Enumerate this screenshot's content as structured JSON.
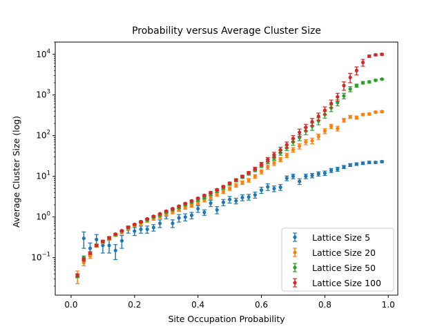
{
  "chart_data": {
    "type": "scatter",
    "title": "Probability versus Average Cluster Size",
    "xlabel": "Site Occupation Probability",
    "ylabel": "Average Cluster Size (log)",
    "xlim": [
      -0.05,
      1.03
    ],
    "ylim": [
      0.012,
      20000
    ],
    "yscale": "log",
    "grid": false,
    "legend_position": "lower-right",
    "xticks": [
      0.0,
      0.2,
      0.4,
      0.6,
      0.8,
      1.0
    ],
    "xtick_labels": [
      "0.0",
      "0.2",
      "0.4",
      "0.6",
      "0.8",
      "1.0"
    ],
    "yticks": [
      0.1,
      1,
      10,
      100,
      1000,
      10000
    ],
    "ytick_labels": [
      {
        "base": "10",
        "exp": "−1"
      },
      {
        "base": "10",
        "exp": "0"
      },
      {
        "base": "10",
        "exp": "1"
      },
      {
        "base": "10",
        "exp": "2"
      },
      {
        "base": "10",
        "exp": "3"
      },
      {
        "base": "10",
        "exp": "4"
      }
    ],
    "series": [
      {
        "name": "Lattice Size 5",
        "color": "#1f77b4",
        "points": [
          [
            0.02,
            0.036,
            0.004
          ],
          [
            0.04,
            0.3,
            0.13
          ],
          [
            0.06,
            0.17,
            0.06
          ],
          [
            0.08,
            0.28,
            0.09
          ],
          [
            0.1,
            0.2,
            0.07
          ],
          [
            0.12,
            0.2,
            0.07
          ],
          [
            0.14,
            0.15,
            0.06
          ],
          [
            0.16,
            0.26,
            0.09
          ],
          [
            0.18,
            0.5,
            0.1
          ],
          [
            0.2,
            0.45,
            0.1
          ],
          [
            0.22,
            0.5,
            0.1
          ],
          [
            0.24,
            0.5,
            0.1
          ],
          [
            0.26,
            0.55,
            0.1
          ],
          [
            0.28,
            0.7,
            0.15
          ],
          [
            0.3,
            1.1,
            0.2
          ],
          [
            0.32,
            0.7,
            0.15
          ],
          [
            0.34,
            0.95,
            0.2
          ],
          [
            0.36,
            1.0,
            0.2
          ],
          [
            0.38,
            1.1,
            0.2
          ],
          [
            0.4,
            1.6,
            0.3
          ],
          [
            0.42,
            1.3,
            0.2
          ],
          [
            0.44,
            2.2,
            0.4
          ],
          [
            0.46,
            1.5,
            0.3
          ],
          [
            0.48,
            2.3,
            0.4
          ],
          [
            0.5,
            2.7,
            0.5
          ],
          [
            0.52,
            2.5,
            0.4
          ],
          [
            0.54,
            3.0,
            0.5
          ],
          [
            0.56,
            3.1,
            0.5
          ],
          [
            0.58,
            3.5,
            0.6
          ],
          [
            0.6,
            4.6,
            0.8
          ],
          [
            0.62,
            5.5,
            1.0
          ],
          [
            0.64,
            5.0,
            0.8
          ],
          [
            0.66,
            5.4,
            0.9
          ],
          [
            0.68,
            9.0,
            1.2
          ],
          [
            0.7,
            10.0,
            1.3
          ],
          [
            0.72,
            7.5,
            1.2
          ],
          [
            0.74,
            10.0,
            1.3
          ],
          [
            0.76,
            10.5,
            1.3
          ],
          [
            0.78,
            11.5,
            1.4
          ],
          [
            0.8,
            12.0,
            1.5
          ],
          [
            0.82,
            14.0,
            1.6
          ],
          [
            0.84,
            15.0,
            1.7
          ],
          [
            0.86,
            17.0,
            1.5
          ],
          [
            0.88,
            19.0,
            1.5
          ],
          [
            0.9,
            20.0,
            1.5
          ],
          [
            0.92,
            21.0,
            1.5
          ],
          [
            0.94,
            22.0,
            1.5
          ],
          [
            0.96,
            22.0,
            1.2
          ],
          [
            0.98,
            23.0,
            1.2
          ]
        ]
      },
      {
        "name": "Lattice Size 20",
        "color": "#ff7f0e",
        "points": [
          [
            0.02,
            0.035,
            0.012
          ],
          [
            0.04,
            0.075,
            0.012
          ],
          [
            0.06,
            0.11,
            0.015
          ],
          [
            0.08,
            0.2,
            0.02
          ],
          [
            0.1,
            0.24,
            0.02
          ],
          [
            0.12,
            0.3,
            0.03
          ],
          [
            0.14,
            0.36,
            0.03
          ],
          [
            0.16,
            0.42,
            0.04
          ],
          [
            0.18,
            0.52,
            0.05
          ],
          [
            0.2,
            0.62,
            0.05
          ],
          [
            0.22,
            0.7,
            0.06
          ],
          [
            0.24,
            0.8,
            0.06
          ],
          [
            0.26,
            0.9,
            0.07
          ],
          [
            0.28,
            1.0,
            0.08
          ],
          [
            0.3,
            1.15,
            0.1
          ],
          [
            0.32,
            1.3,
            0.1
          ],
          [
            0.34,
            1.5,
            0.12
          ],
          [
            0.36,
            1.7,
            0.15
          ],
          [
            0.38,
            1.9,
            0.15
          ],
          [
            0.4,
            2.2,
            0.2
          ],
          [
            0.42,
            2.6,
            0.25
          ],
          [
            0.44,
            3.0,
            0.3
          ],
          [
            0.46,
            3.6,
            0.35
          ],
          [
            0.48,
            4.2,
            0.4
          ],
          [
            0.5,
            5.0,
            0.5
          ],
          [
            0.52,
            6.0,
            0.6
          ],
          [
            0.54,
            7.0,
            0.7
          ],
          [
            0.56,
            8.0,
            0.8
          ],
          [
            0.58,
            10.0,
            1.0
          ],
          [
            0.6,
            13.0,
            1.5
          ],
          [
            0.62,
            17.0,
            2.0
          ],
          [
            0.64,
            21.0,
            2.5
          ],
          [
            0.66,
            26.0,
            3.0
          ],
          [
            0.68,
            33.0,
            4.0
          ],
          [
            0.7,
            45.0,
            6.0
          ],
          [
            0.72,
            55.0,
            8.0
          ],
          [
            0.74,
            70.0,
            10.0
          ],
          [
            0.76,
            75.0,
            12.0
          ],
          [
            0.78,
            95.0,
            14.0
          ],
          [
            0.8,
            130.0,
            18.0
          ],
          [
            0.82,
            170.0,
            20.0
          ],
          [
            0.84,
            150.0,
            20.0
          ],
          [
            0.86,
            240.0,
            25.0
          ],
          [
            0.88,
            290.0,
            25.0
          ],
          [
            0.9,
            280.0,
            25.0
          ],
          [
            0.92,
            330.0,
            20.0
          ],
          [
            0.94,
            340.0,
            20.0
          ],
          [
            0.96,
            380.0,
            20.0
          ],
          [
            0.98,
            390.0,
            20.0
          ]
        ]
      },
      {
        "name": "Lattice Size 50",
        "color": "#2ca02c",
        "points": [
          [
            0.02,
            0.036,
            0.004
          ],
          [
            0.04,
            0.1,
            0.01
          ],
          [
            0.06,
            0.13,
            0.01
          ],
          [
            0.08,
            0.2,
            0.01
          ],
          [
            0.1,
            0.25,
            0.015
          ],
          [
            0.12,
            0.3,
            0.02
          ],
          [
            0.14,
            0.37,
            0.02
          ],
          [
            0.16,
            0.45,
            0.02
          ],
          [
            0.18,
            0.55,
            0.03
          ],
          [
            0.2,
            0.65,
            0.03
          ],
          [
            0.22,
            0.75,
            0.03
          ],
          [
            0.24,
            0.85,
            0.04
          ],
          [
            0.26,
            1.0,
            0.05
          ],
          [
            0.28,
            1.1,
            0.05
          ],
          [
            0.3,
            1.3,
            0.06
          ],
          [
            0.32,
            1.5,
            0.07
          ],
          [
            0.34,
            1.7,
            0.08
          ],
          [
            0.36,
            2.0,
            0.1
          ],
          [
            0.38,
            2.3,
            0.12
          ],
          [
            0.4,
            2.6,
            0.15
          ],
          [
            0.42,
            3.0,
            0.2
          ],
          [
            0.44,
            3.6,
            0.25
          ],
          [
            0.46,
            4.3,
            0.3
          ],
          [
            0.48,
            5.2,
            0.35
          ],
          [
            0.5,
            6.4,
            0.4
          ],
          [
            0.52,
            7.8,
            0.5
          ],
          [
            0.54,
            9.5,
            0.6
          ],
          [
            0.56,
            11.5,
            0.8
          ],
          [
            0.58,
            14.0,
            1.0
          ],
          [
            0.6,
            18.0,
            1.5
          ],
          [
            0.62,
            23.0,
            2.5
          ],
          [
            0.64,
            28.0,
            3.0
          ],
          [
            0.66,
            38.0,
            5.0
          ],
          [
            0.68,
            50.0,
            7.0
          ],
          [
            0.7,
            70.0,
            12.0
          ],
          [
            0.72,
            90.0,
            15.0
          ],
          [
            0.74,
            130.0,
            25.0
          ],
          [
            0.76,
            170.0,
            35.0
          ],
          [
            0.78,
            230.0,
            45.0
          ],
          [
            0.8,
            330.0,
            60.0
          ],
          [
            0.82,
            480.0,
            90.0
          ],
          [
            0.84,
            650.0,
            110.0
          ],
          [
            0.86,
            950.0,
            150.0
          ],
          [
            0.88,
            1400.0,
            200.0
          ],
          [
            0.9,
            1700.0,
            150.0
          ],
          [
            0.92,
            2000.0,
            150.0
          ],
          [
            0.94,
            2100.0,
            120.0
          ],
          [
            0.96,
            2300.0,
            100.0
          ],
          [
            0.98,
            2450.0,
            80.0
          ]
        ]
      },
      {
        "name": "Lattice Size 100",
        "color": "#d62728",
        "points": [
          [
            0.02,
            0.037,
            0.003
          ],
          [
            0.04,
            0.09,
            0.008
          ],
          [
            0.06,
            0.13,
            0.01
          ],
          [
            0.08,
            0.2,
            0.01
          ],
          [
            0.1,
            0.25,
            0.01
          ],
          [
            0.12,
            0.31,
            0.015
          ],
          [
            0.14,
            0.38,
            0.015
          ],
          [
            0.16,
            0.46,
            0.02
          ],
          [
            0.18,
            0.56,
            0.02
          ],
          [
            0.2,
            0.66,
            0.02
          ],
          [
            0.22,
            0.77,
            0.03
          ],
          [
            0.24,
            0.9,
            0.03
          ],
          [
            0.26,
            1.04,
            0.04
          ],
          [
            0.28,
            1.2,
            0.04
          ],
          [
            0.3,
            1.4,
            0.05
          ],
          [
            0.32,
            1.6,
            0.06
          ],
          [
            0.34,
            1.85,
            0.07
          ],
          [
            0.36,
            2.15,
            0.08
          ],
          [
            0.38,
            2.5,
            0.1
          ],
          [
            0.4,
            2.9,
            0.12
          ],
          [
            0.42,
            3.4,
            0.15
          ],
          [
            0.44,
            4.0,
            0.2
          ],
          [
            0.46,
            4.7,
            0.25
          ],
          [
            0.48,
            5.6,
            0.3
          ],
          [
            0.5,
            6.8,
            0.4
          ],
          [
            0.52,
            8.2,
            0.5
          ],
          [
            0.54,
            10.0,
            0.6
          ],
          [
            0.56,
            12.3,
            0.8
          ],
          [
            0.58,
            15.5,
            1.2
          ],
          [
            0.6,
            20.0,
            2.0
          ],
          [
            0.62,
            26.0,
            3.0
          ],
          [
            0.64,
            34.0,
            5.0
          ],
          [
            0.66,
            45.0,
            7.0
          ],
          [
            0.68,
            60.0,
            10.0
          ],
          [
            0.7,
            85.0,
            15.0
          ],
          [
            0.72,
            120.0,
            25.0
          ],
          [
            0.74,
            160.0,
            30.0
          ],
          [
            0.76,
            220.0,
            45.0
          ],
          [
            0.78,
            300.0,
            60.0
          ],
          [
            0.8,
            420.0,
            90.0
          ],
          [
            0.82,
            620.0,
            130.0
          ],
          [
            0.84,
            900.0,
            200.0
          ],
          [
            0.86,
            1700.0,
            400.0
          ],
          [
            0.88,
            2700.0,
            700.0
          ],
          [
            0.9,
            4000.0,
            900.0
          ],
          [
            0.92,
            6300.0,
            1200.0
          ],
          [
            0.94,
            9000.0,
            600.0
          ],
          [
            0.96,
            9700.0,
            500.0
          ],
          [
            0.98,
            10000.0,
            500.0
          ]
        ]
      }
    ]
  }
}
